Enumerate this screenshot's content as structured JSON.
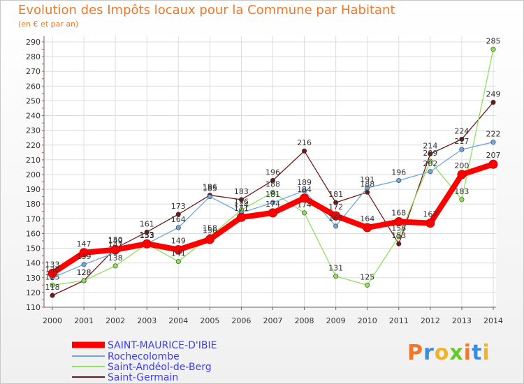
{
  "header": {
    "title": "Evolution des Impôts locaux pour la Commune par Habitant",
    "subtitle": "(en € et par an)"
  },
  "logo": {
    "text": "Proxiti",
    "colors": [
      "#f0782a",
      "#3c8cdc",
      "#f0b428",
      "#64c828",
      "#f0782a",
      "#3c8cdc",
      "#f0b428"
    ]
  },
  "chart_data": {
    "type": "line",
    "title": "Evolution des Impôts locaux pour la Commune par Habitant",
    "subtitle": "(en € et par an)",
    "xlabel": "",
    "ylabel": "",
    "x": [
      "2000",
      "2001",
      "2002",
      "2003",
      "2004",
      "2005",
      "2006",
      "2007",
      "2008",
      "2009",
      "2010",
      "2011",
      "2012",
      "2013",
      "2014"
    ],
    "ylim": [
      110,
      290
    ],
    "yticks": [
      110,
      120,
      130,
      140,
      150,
      160,
      170,
      180,
      190,
      200,
      210,
      220,
      230,
      240,
      250,
      260,
      270,
      280,
      290
    ],
    "grid": true,
    "legend_position": "bottom-left",
    "series": [
      {
        "name": "SAINT-MAURICE-D'IBIE",
        "color": "#ff0000",
        "values": [
          133,
          147,
          149,
          153,
          149,
          156,
          171,
          174,
          184,
          172,
          164,
          168,
          167,
          200,
          207
        ]
      },
      {
        "name": "Rochecolombe",
        "color": "#6fa8dc",
        "values": [
          130,
          139,
          147,
          153,
          164,
          185,
          174,
          181,
          189,
          165,
          191,
          196,
          202,
          217,
          222
        ]
      },
      {
        "name": "Saint-Andéol-de-Berg",
        "color": "#8fe05a",
        "values": [
          125,
          128,
          138,
          153,
          141,
          158,
          176,
          188,
          174,
          131,
          125,
          158,
          209,
          183,
          285
        ]
      },
      {
        "name": "Saint-Germain",
        "color": "#6e1a1a",
        "values": [
          118,
          128,
          150,
          161,
          173,
          186,
          183,
          196,
          216,
          181,
          188,
          153,
          214,
          224,
          249
        ]
      }
    ]
  }
}
